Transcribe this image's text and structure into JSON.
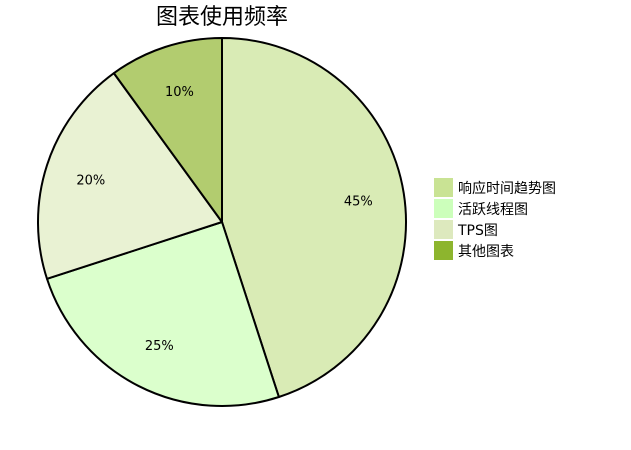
{
  "chart_data": {
    "type": "pie",
    "title": "图表使用频率",
    "slices": [
      {
        "name": "响应时间趋势图",
        "value": 45,
        "label": "45%",
        "color": "#d9ebb5"
      },
      {
        "name": "活跃线程图",
        "value": 25,
        "label": "25%",
        "color": "#dbffcc"
      },
      {
        "name": "TPS图",
        "value": 20,
        "label": "20%",
        "color": "#e9f2d3"
      },
      {
        "name": "其他图表",
        "value": 10,
        "label": "10%",
        "color": "#b2cc6f"
      }
    ],
    "legend": {
      "position": "right",
      "entries": [
        {
          "name": "响应时间趋势图",
          "color": "#c9e394"
        },
        {
          "name": "活跃线程图",
          "color": "#ccffbb"
        },
        {
          "name": "TPS图",
          "color": "#dde9be"
        },
        {
          "name": "其他图表",
          "color": "#8db52e"
        }
      ]
    }
  }
}
